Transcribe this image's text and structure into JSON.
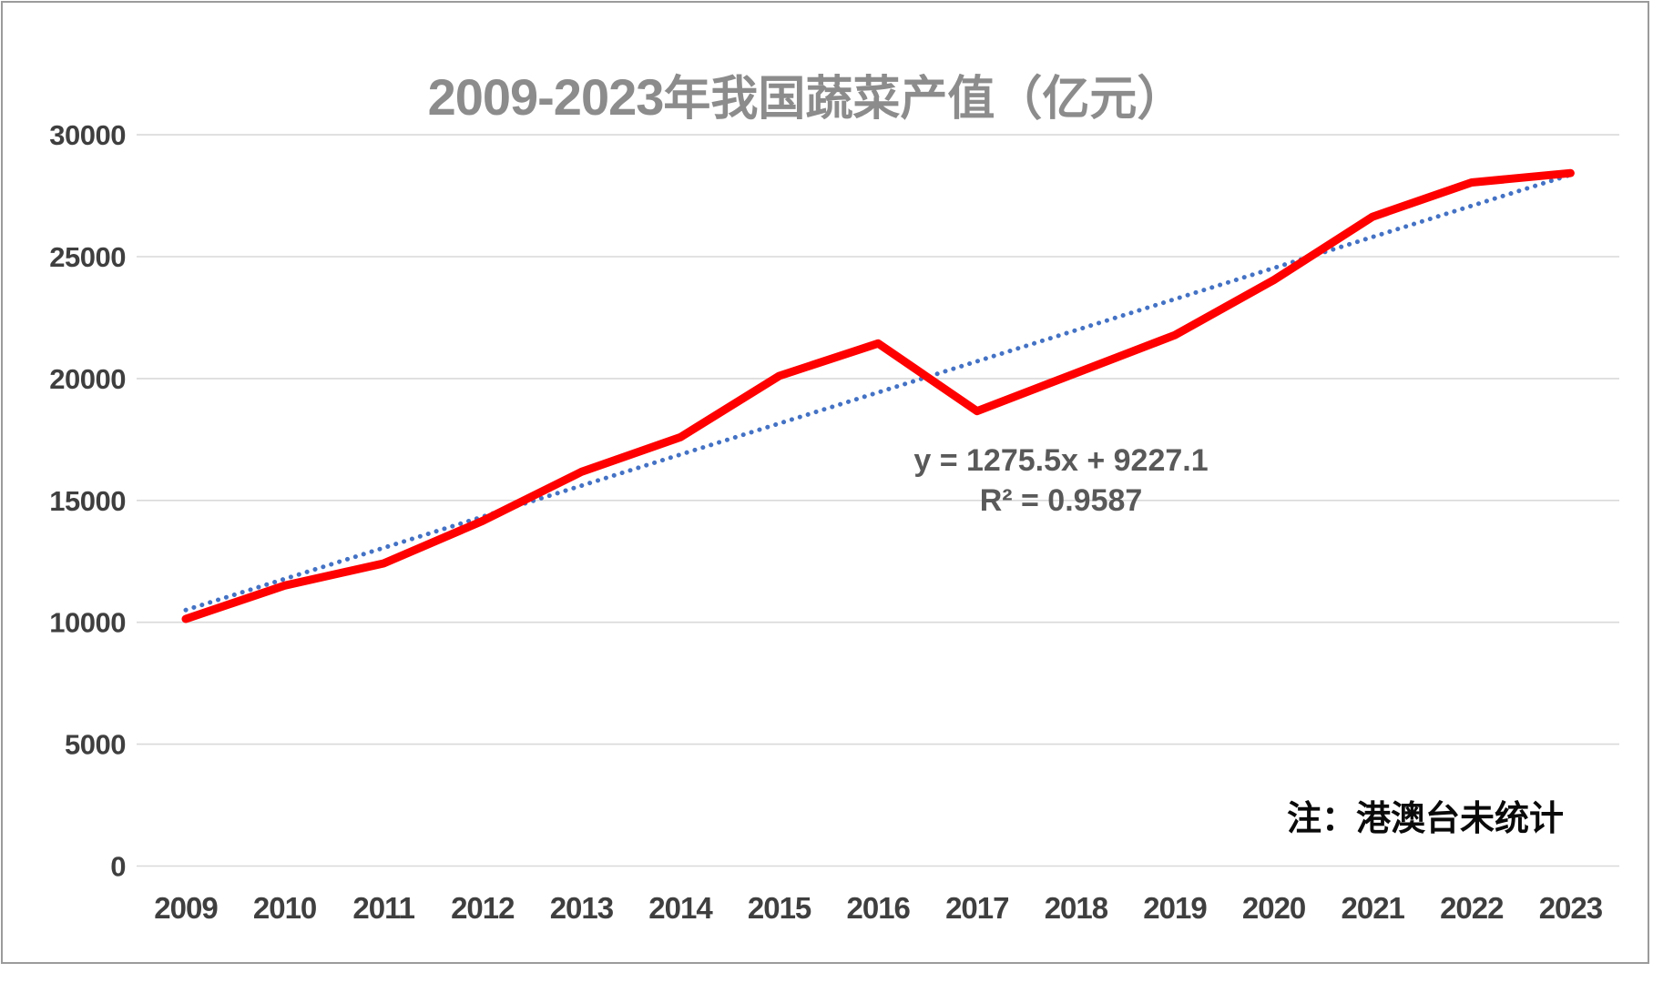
{
  "header": {
    "title_range": "2009-2023",
    "title_suffix": "年我国蔬菜产值（亿元）"
  },
  "annotations": {
    "equation": "y = 1275.5x + 9227.1",
    "r_squared": "R² = 0.9587",
    "note": "注：港澳台未统计"
  },
  "colors": {
    "series_red": "#fe0000",
    "trend_blue": "#4472c4",
    "gridline": "#d9d9d9",
    "axis_label": "#3f3f3f",
    "title_gray": "#8c8c8c",
    "equation_gray": "#595959"
  },
  "chart_data": {
    "type": "line",
    "title": "2009-2023年我国蔬菜产值（亿元）",
    "categories": [
      "2009",
      "2010",
      "2011",
      "2012",
      "2013",
      "2014",
      "2015",
      "2016",
      "2017",
      "2018",
      "2019",
      "2020",
      "2021",
      "2022",
      "2023"
    ],
    "series": [
      {
        "name": "蔬菜产值(亿元)",
        "color": "#fe0000",
        "values": [
          10136.6,
          11508.7,
          12415.4,
          14154.6,
          16173.3,
          17591.9,
          20109.3,
          21442.1,
          18661.9,
          20222.6,
          21780.9,
          24040.7,
          26639.0,
          28043.5,
          28428.5
        ]
      }
    ],
    "trendline": {
      "type": "linear",
      "style": "dotted",
      "color": "#4472c4",
      "slope": 1275.5,
      "intercept": 9227.1,
      "equation_label": "y = 1275.5x + 9227.1",
      "r2": 0.9587,
      "r2_label": "R² = 0.9587"
    },
    "xlabel": "",
    "ylabel": "",
    "ylim": [
      0,
      30000
    ],
    "y_ticks": [
      0,
      5000,
      10000,
      15000,
      20000,
      25000,
      30000
    ],
    "grid": "horizontal",
    "legend": "none",
    "note": "注：港澳台未统计"
  }
}
